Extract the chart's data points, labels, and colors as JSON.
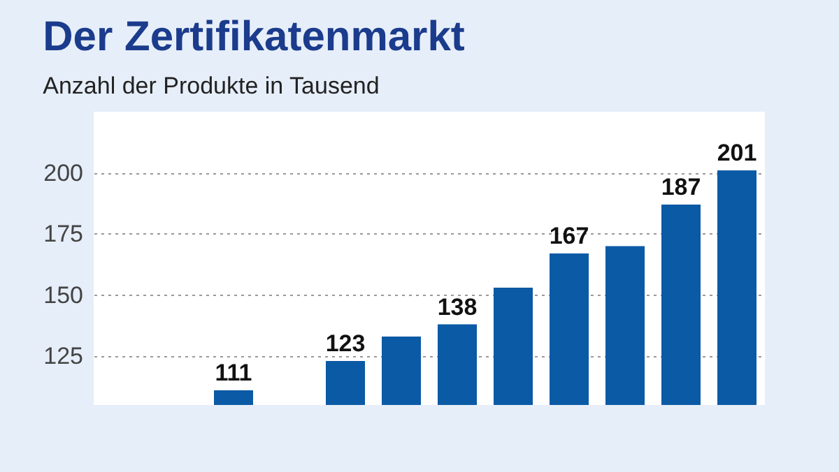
{
  "chart_data": {
    "type": "bar",
    "title": "Der Zertifikatenmarkt",
    "subtitle": "Anzahl der Produkte in Tausend",
    "categories": [
      null,
      null,
      null,
      null,
      null,
      null,
      null,
      null,
      null,
      null,
      null,
      null
    ],
    "values": [
      null,
      null,
      111,
      null,
      123,
      133,
      138,
      153,
      167,
      170,
      187,
      201
    ],
    "value_labels": [
      null,
      null,
      "111",
      null,
      "123",
      null,
      "138",
      null,
      "167",
      null,
      "187",
      "201"
    ],
    "color": "#0b5aa5",
    "ylim": [
      105,
      225
    ],
    "yticks": [
      125,
      150,
      175,
      200
    ],
    "grid": "y",
    "tick_labels": "y"
  }
}
